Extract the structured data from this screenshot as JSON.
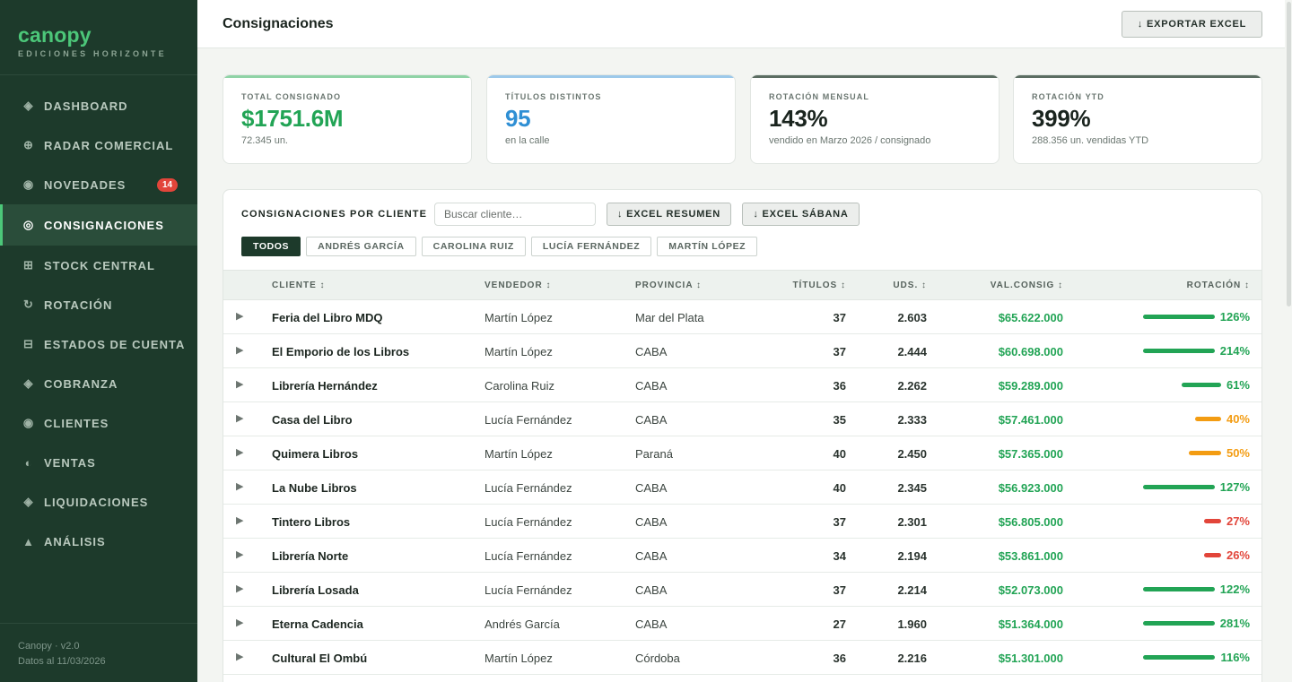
{
  "app": {
    "name": "canopy",
    "subtitle": "EDICIONES HORIZONTE"
  },
  "sidebar": {
    "items": [
      {
        "label": "DASHBOARD",
        "icon": "diamond-icon",
        "glyph": "◈"
      },
      {
        "label": "RADAR COMERCIAL",
        "icon": "crosshair-icon",
        "glyph": "⊕"
      },
      {
        "label": "NOVEDADES",
        "icon": "circle-dot-icon",
        "glyph": "◉",
        "badge": "14"
      },
      {
        "label": "CONSIGNACIONES",
        "icon": "target-icon",
        "glyph": "◎",
        "active": true
      },
      {
        "label": "STOCK CENTRAL",
        "icon": "grid-icon",
        "glyph": "⊞"
      },
      {
        "label": "ROTACIÓN",
        "icon": "rotate-icon",
        "glyph": "↻"
      },
      {
        "label": "ESTADOS DE CUENTA",
        "icon": "ledger-icon",
        "glyph": "⊟"
      },
      {
        "label": "COBRANZA",
        "icon": "diamond-icon",
        "glyph": "◈"
      },
      {
        "label": "CLIENTES",
        "icon": "circle-dot-icon",
        "glyph": "◉"
      },
      {
        "label": "VENTAS",
        "icon": "half-circle-icon",
        "glyph": "◐"
      },
      {
        "label": "LIQUIDACIONES",
        "icon": "diamond-icon",
        "glyph": "◈"
      },
      {
        "label": "ANÁLISIS",
        "icon": "triangle-icon",
        "glyph": "▲"
      }
    ],
    "footer_version": "Canopy · v2.0",
    "footer_date": "Datos al 11/03/2026"
  },
  "header": {
    "title": "Consignaciones",
    "export_label": "↓ EXPORTAR EXCEL"
  },
  "kpis": [
    {
      "label": "TOTAL CONSIGNADO",
      "value": "$1751.6M",
      "sub": "72.345 un.",
      "color": "#22a455",
      "bar": "#8fd3a6"
    },
    {
      "label": "TÍTULOS DISTINTOS",
      "value": "95",
      "sub": "en la calle",
      "color": "#2f8fd4",
      "bar": "#9cc9ea"
    },
    {
      "label": "ROTACIÓN MENSUAL",
      "value": "143%",
      "sub": "vendido en Marzo 2026 / consignado",
      "color": "#1a241e",
      "bar": "#5b6d62"
    },
    {
      "label": "ROTACIÓN YTD",
      "value": "399%",
      "sub": "288.356 un. vendidas YTD",
      "color": "#1a241e",
      "bar": "#5b6d62"
    }
  ],
  "panel": {
    "title": "CONSIGNACIONES POR CLIENTE",
    "search_placeholder": "Buscar cliente…",
    "btn_resumen": "↓ EXCEL RESUMEN",
    "btn_sabana": "↓ EXCEL SÁBANA",
    "filters": [
      "TODOS",
      "ANDRÉS GARCÍA",
      "CAROLINA RUIZ",
      "LUCÍA FERNÁNDEZ",
      "MARTÍN LÓPEZ"
    ],
    "active_filter": "TODOS"
  },
  "table": {
    "headers": {
      "cliente": "CLIENTE ↕",
      "vendedor": "VENDEDOR ↕",
      "provincia": "PROVINCIA ↕",
      "titulos": "TÍTULOS ↕",
      "uds": "UDS. ↕",
      "val": "VAL.CONSIG ↕",
      "rotacion": "ROTACIÓN ↕"
    },
    "rows": [
      {
        "cliente": "Feria del Libro MDQ",
        "vendedor": "Martín López",
        "provincia": "Mar del Plata",
        "titulos": "37",
        "uds": "2.603",
        "val": "$65.622.000",
        "rotacion": "126%",
        "rot_value": 126,
        "rot_color": "#22a455"
      },
      {
        "cliente": "El Emporio de los Libros",
        "vendedor": "Martín López",
        "provincia": "CABA",
        "titulos": "37",
        "uds": "2.444",
        "val": "$60.698.000",
        "rotacion": "214%",
        "rot_value": 214,
        "rot_color": "#22a455"
      },
      {
        "cliente": "Librería Hernández",
        "vendedor": "Carolina Ruiz",
        "provincia": "CABA",
        "titulos": "36",
        "uds": "2.262",
        "val": "$59.289.000",
        "rotacion": "61%",
        "rot_value": 61,
        "rot_color": "#22a455"
      },
      {
        "cliente": "Casa del Libro",
        "vendedor": "Lucía Fernández",
        "provincia": "CABA",
        "titulos": "35",
        "uds": "2.333",
        "val": "$57.461.000",
        "rotacion": "40%",
        "rot_value": 40,
        "rot_color": "#f39c12"
      },
      {
        "cliente": "Quimera Libros",
        "vendedor": "Martín López",
        "provincia": "Paraná",
        "titulos": "40",
        "uds": "2.450",
        "val": "$57.365.000",
        "rotacion": "50%",
        "rot_value": 50,
        "rot_color": "#f39c12"
      },
      {
        "cliente": "La Nube Libros",
        "vendedor": "Lucía Fernández",
        "provincia": "CABA",
        "titulos": "40",
        "uds": "2.345",
        "val": "$56.923.000",
        "rotacion": "127%",
        "rot_value": 127,
        "rot_color": "#22a455"
      },
      {
        "cliente": "Tintero Libros",
        "vendedor": "Lucía Fernández",
        "provincia": "CABA",
        "titulos": "37",
        "uds": "2.301",
        "val": "$56.805.000",
        "rotacion": "27%",
        "rot_value": 27,
        "rot_color": "#e2453a"
      },
      {
        "cliente": "Librería Norte",
        "vendedor": "Lucía Fernández",
        "provincia": "CABA",
        "titulos": "34",
        "uds": "2.194",
        "val": "$53.861.000",
        "rotacion": "26%",
        "rot_value": 26,
        "rot_color": "#e2453a"
      },
      {
        "cliente": "Librería Losada",
        "vendedor": "Lucía Fernández",
        "provincia": "CABA",
        "titulos": "37",
        "uds": "2.214",
        "val": "$52.073.000",
        "rotacion": "122%",
        "rot_value": 122,
        "rot_color": "#22a455"
      },
      {
        "cliente": "Eterna Cadencia",
        "vendedor": "Andrés García",
        "provincia": "CABA",
        "titulos": "27",
        "uds": "1.960",
        "val": "$51.364.000",
        "rotacion": "281%",
        "rot_value": 281,
        "rot_color": "#22a455"
      },
      {
        "cliente": "Cultural El Ombú",
        "vendedor": "Martín López",
        "provincia": "Córdoba",
        "titulos": "36",
        "uds": "2.216",
        "val": "$51.301.000",
        "rotacion": "116%",
        "rot_value": 116,
        "rot_color": "#22a455"
      }
    ]
  }
}
